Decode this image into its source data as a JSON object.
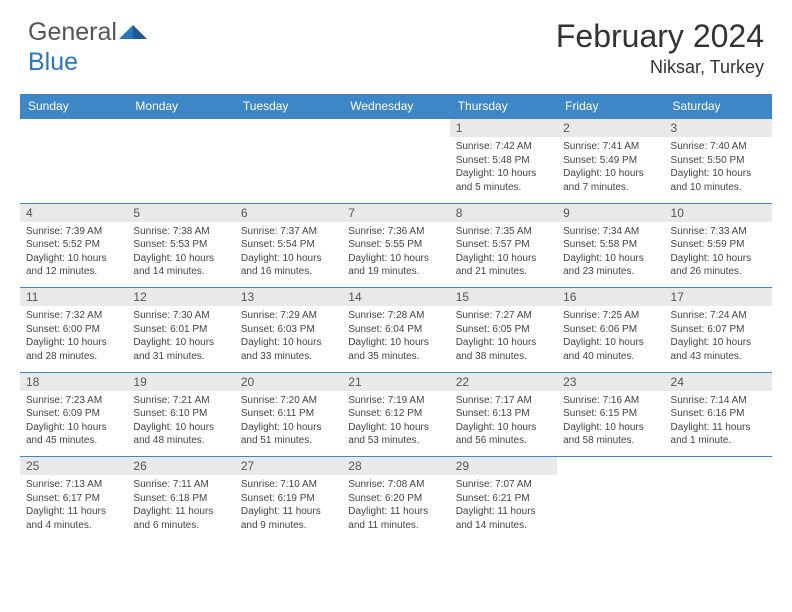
{
  "logo": {
    "textGray": "General",
    "textBlue": "Blue"
  },
  "title": "February 2024",
  "location": "Niksar, Turkey",
  "colors": {
    "headerBg": "#3D87C7",
    "headerText": "#ffffff",
    "dayNumBg": "#E9E9E9",
    "ruleColor": "#3D87C7",
    "logoBlue": "#2976BC"
  },
  "weekdays": [
    "Sunday",
    "Monday",
    "Tuesday",
    "Wednesday",
    "Thursday",
    "Friday",
    "Saturday"
  ],
  "weeks": [
    [
      null,
      null,
      null,
      null,
      {
        "n": "1",
        "sr": "7:42 AM",
        "ss": "5:48 PM",
        "d": "10 hours and 5 minutes."
      },
      {
        "n": "2",
        "sr": "7:41 AM",
        "ss": "5:49 PM",
        "d": "10 hours and 7 minutes."
      },
      {
        "n": "3",
        "sr": "7:40 AM",
        "ss": "5:50 PM",
        "d": "10 hours and 10 minutes."
      }
    ],
    [
      {
        "n": "4",
        "sr": "7:39 AM",
        "ss": "5:52 PM",
        "d": "10 hours and 12 minutes."
      },
      {
        "n": "5",
        "sr": "7:38 AM",
        "ss": "5:53 PM",
        "d": "10 hours and 14 minutes."
      },
      {
        "n": "6",
        "sr": "7:37 AM",
        "ss": "5:54 PM",
        "d": "10 hours and 16 minutes."
      },
      {
        "n": "7",
        "sr": "7:36 AM",
        "ss": "5:55 PM",
        "d": "10 hours and 19 minutes."
      },
      {
        "n": "8",
        "sr": "7:35 AM",
        "ss": "5:57 PM",
        "d": "10 hours and 21 minutes."
      },
      {
        "n": "9",
        "sr": "7:34 AM",
        "ss": "5:58 PM",
        "d": "10 hours and 23 minutes."
      },
      {
        "n": "10",
        "sr": "7:33 AM",
        "ss": "5:59 PM",
        "d": "10 hours and 26 minutes."
      }
    ],
    [
      {
        "n": "11",
        "sr": "7:32 AM",
        "ss": "6:00 PM",
        "d": "10 hours and 28 minutes."
      },
      {
        "n": "12",
        "sr": "7:30 AM",
        "ss": "6:01 PM",
        "d": "10 hours and 31 minutes."
      },
      {
        "n": "13",
        "sr": "7:29 AM",
        "ss": "6:03 PM",
        "d": "10 hours and 33 minutes."
      },
      {
        "n": "14",
        "sr": "7:28 AM",
        "ss": "6:04 PM",
        "d": "10 hours and 35 minutes."
      },
      {
        "n": "15",
        "sr": "7:27 AM",
        "ss": "6:05 PM",
        "d": "10 hours and 38 minutes."
      },
      {
        "n": "16",
        "sr": "7:25 AM",
        "ss": "6:06 PM",
        "d": "10 hours and 40 minutes."
      },
      {
        "n": "17",
        "sr": "7:24 AM",
        "ss": "6:07 PM",
        "d": "10 hours and 43 minutes."
      }
    ],
    [
      {
        "n": "18",
        "sr": "7:23 AM",
        "ss": "6:09 PM",
        "d": "10 hours and 45 minutes."
      },
      {
        "n": "19",
        "sr": "7:21 AM",
        "ss": "6:10 PM",
        "d": "10 hours and 48 minutes."
      },
      {
        "n": "20",
        "sr": "7:20 AM",
        "ss": "6:11 PM",
        "d": "10 hours and 51 minutes."
      },
      {
        "n": "21",
        "sr": "7:19 AM",
        "ss": "6:12 PM",
        "d": "10 hours and 53 minutes."
      },
      {
        "n": "22",
        "sr": "7:17 AM",
        "ss": "6:13 PM",
        "d": "10 hours and 56 minutes."
      },
      {
        "n": "23",
        "sr": "7:16 AM",
        "ss": "6:15 PM",
        "d": "10 hours and 58 minutes."
      },
      {
        "n": "24",
        "sr": "7:14 AM",
        "ss": "6:16 PM",
        "d": "11 hours and 1 minute."
      }
    ],
    [
      {
        "n": "25",
        "sr": "7:13 AM",
        "ss": "6:17 PM",
        "d": "11 hours and 4 minutes."
      },
      {
        "n": "26",
        "sr": "7:11 AM",
        "ss": "6:18 PM",
        "d": "11 hours and 6 minutes."
      },
      {
        "n": "27",
        "sr": "7:10 AM",
        "ss": "6:19 PM",
        "d": "11 hours and 9 minutes."
      },
      {
        "n": "28",
        "sr": "7:08 AM",
        "ss": "6:20 PM",
        "d": "11 hours and 11 minutes."
      },
      {
        "n": "29",
        "sr": "7:07 AM",
        "ss": "6:21 PM",
        "d": "11 hours and 14 minutes."
      },
      null,
      null
    ]
  ],
  "labels": {
    "sunrise": "Sunrise:",
    "sunset": "Sunset:",
    "daylight": "Daylight:"
  }
}
